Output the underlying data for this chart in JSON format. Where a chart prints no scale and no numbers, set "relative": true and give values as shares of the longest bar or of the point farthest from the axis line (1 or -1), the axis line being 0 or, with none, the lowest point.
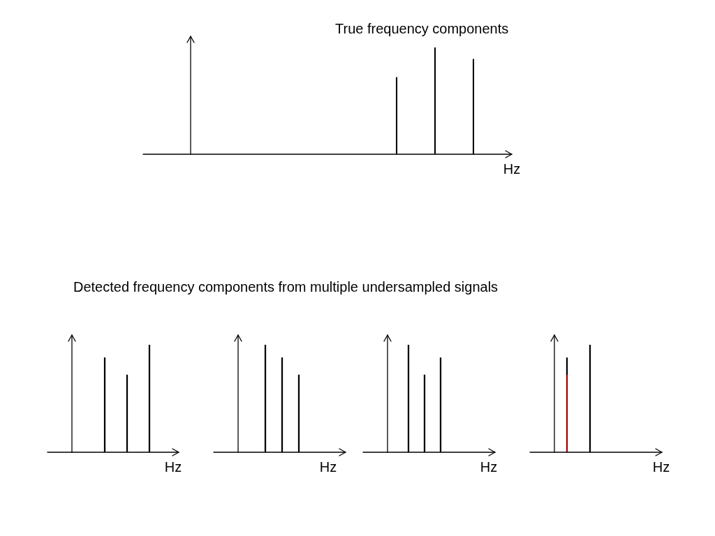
{
  "chart_data": [
    {
      "type": "bar",
      "title": "True frequency components",
      "xlabel": "Hz",
      "relative": true,
      "color": "#000000",
      "categories": [
        null,
        null,
        null
      ],
      "values": [
        0.72,
        1,
        0.89
      ]
    },
    {
      "type": "bar",
      "title": "Detected frequency components from multiple undersampled signals",
      "xlabel": "Hz",
      "relative": true,
      "color": "#000000",
      "categories": [
        null,
        null,
        null
      ],
      "values": [
        0.88,
        0.72,
        1
      ]
    },
    {
      "type": "bar",
      "xlabel": "Hz",
      "relative": true,
      "color": "#000000",
      "categories": [
        null,
        null,
        null
      ],
      "values": [
        1,
        0.88,
        0.72
      ]
    },
    {
      "type": "bar",
      "xlabel": "Hz",
      "relative": true,
      "color": "#000000",
      "categories": [
        null,
        null,
        null
      ],
      "values": [
        1,
        0.72,
        0.88
      ]
    },
    {
      "type": "bar",
      "xlabel": "Hz",
      "relative": true,
      "stacked": true,
      "categories": [
        null,
        null
      ],
      "series": [
        {
          "colors": [
            "#a00000",
            "#000000"
          ],
          "values": [
            0.72,
            1
          ]
        },
        {
          "color": "#000000",
          "values": [
            0.16,
            0
          ]
        }
      ]
    }
  ]
}
